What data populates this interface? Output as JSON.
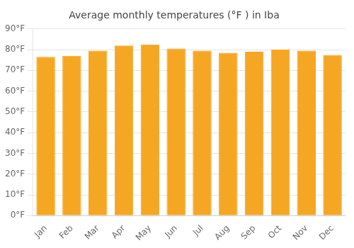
{
  "chart_data": {
    "type": "bar",
    "title": "Average monthly temperatures (°F ) in Iba",
    "categories": [
      "Jan",
      "Feb",
      "Mar",
      "Apr",
      "May",
      "Jun",
      "Jul",
      "Aug",
      "Sep",
      "Oct",
      "Nov",
      "Dec"
    ],
    "values": [
      76.5,
      77.0,
      79.5,
      82.0,
      82.5,
      80.5,
      79.5,
      78.5,
      79.0,
      80.0,
      79.5,
      77.5
    ],
    "color": "#F5A623",
    "ylim": [
      0,
      90
    ],
    "yticks": [
      {
        "value": 0,
        "label": "0°F"
      },
      {
        "value": 10,
        "label": "10°F"
      },
      {
        "value": 20,
        "label": "20°F"
      },
      {
        "value": 30,
        "label": "30°F"
      },
      {
        "value": 40,
        "label": "40°F"
      },
      {
        "value": 50,
        "label": "50°F"
      },
      {
        "value": 60,
        "label": "60°F"
      },
      {
        "value": 70,
        "label": "70°F"
      },
      {
        "value": 80,
        "label": "80°F"
      },
      {
        "value": 90,
        "label": "90°F"
      }
    ],
    "grid": true
  }
}
